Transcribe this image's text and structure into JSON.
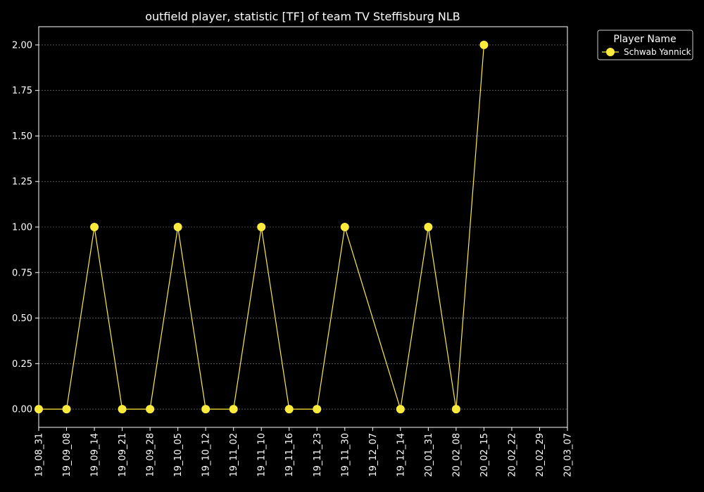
{
  "chart_data": {
    "type": "line",
    "title": "outfield player, statistic [TF] of team TV Steffisburg NLB",
    "xlabel": "",
    "ylabel": "",
    "categories": [
      "19_08_31",
      "19_09_08",
      "19_09_14",
      "19_09_21",
      "19_09_28",
      "19_10_05",
      "19_10_12",
      "19_11_02",
      "19_11_10",
      "19_11_16",
      "19_11_23",
      "19_11_30",
      "19_12_07",
      "19_12_14",
      "20_01_31",
      "20_02_08",
      "20_02_15",
      "20_02_22",
      "20_02_29",
      "20_03_07"
    ],
    "series": [
      {
        "name": "Schwab Yannick",
        "color": "#ffeb3b",
        "values": [
          0,
          0,
          1,
          0,
          0,
          1,
          0,
          0,
          1,
          0,
          0,
          1,
          null,
          0,
          1,
          0,
          2,
          null,
          null,
          null
        ]
      }
    ],
    "ylim": [
      -0.1,
      2.1
    ],
    "yticks": [
      0.0,
      0.25,
      0.5,
      0.75,
      1.0,
      1.25,
      1.5,
      1.75,
      2.0
    ],
    "ytick_labels": [
      "0.00",
      "0.25",
      "0.50",
      "0.75",
      "1.00",
      "1.25",
      "1.50",
      "1.75",
      "2.00"
    ],
    "grid": true,
    "legend": {
      "title": "Player Name",
      "placement": "outside-top-right"
    },
    "colors": {
      "background": "#000000",
      "axes": "#ffffff",
      "grid": "#888888"
    }
  }
}
